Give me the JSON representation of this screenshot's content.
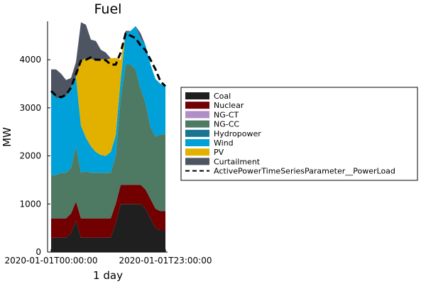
{
  "chart_data": {
    "type": "area",
    "stacked": true,
    "title": "Fuel",
    "xlabel": "1 day",
    "ylabel": "MW",
    "ylim": [
      0,
      4800
    ],
    "yticks": [
      0,
      1000,
      2000,
      3000,
      4000
    ],
    "xticks": [
      {
        "hour": 0,
        "label": "2020-01-01T00:00:00"
      },
      {
        "hour": 23,
        "label": "2020-01-01T23:00:00"
      }
    ],
    "x": [
      0,
      1,
      2,
      3,
      4,
      5,
      6,
      7,
      8,
      9,
      10,
      11,
      12,
      13,
      14,
      15,
      16,
      17,
      18,
      19,
      20,
      21,
      22,
      23
    ],
    "grid": false,
    "legend_position": "right",
    "series": [
      {
        "name": "Coal",
        "color": "#1f1f1f",
        "values": [
          300,
          300,
          300,
          300,
          400,
          650,
          300,
          300,
          300,
          300,
          300,
          300,
          300,
          600,
          1000,
          1000,
          1000,
          1000,
          1000,
          900,
          700,
          500,
          450,
          450
        ]
      },
      {
        "name": "Nuclear",
        "color": "#720000",
        "values": [
          400,
          400,
          400,
          400,
          400,
          400,
          400,
          400,
          400,
          400,
          400,
          400,
          400,
          400,
          400,
          400,
          400,
          400,
          400,
          400,
          400,
          400,
          400,
          400
        ]
      },
      {
        "name": "NG-CT",
        "color": "#b08fc7",
        "values": [
          0,
          0,
          0,
          0,
          0,
          0,
          0,
          0,
          0,
          0,
          0,
          0,
          0,
          0,
          0,
          0,
          0,
          0,
          0,
          0,
          0,
          0,
          0,
          0
        ]
      },
      {
        "name": "NG-CC",
        "color": "#4e7a63",
        "values": [
          900,
          900,
          950,
          950,
          950,
          1150,
          950,
          980,
          950,
          950,
          950,
          950,
          950,
          1000,
          1800,
          2500,
          2500,
          2400,
          2000,
          1800,
          1500,
          1500,
          1600,
          1600
        ]
      },
      {
        "name": "Hydropower",
        "color": "#1a7590",
        "values": [
          0,
          0,
          0,
          0,
          0,
          0,
          0,
          0,
          0,
          0,
          0,
          0,
          0,
          0,
          0,
          0,
          0,
          0,
          0,
          0,
          0,
          0,
          0,
          0
        ]
      },
      {
        "name": "Wind",
        "color": "#00a0d8",
        "values": [
          1750,
          1600,
          1560,
          1600,
          1670,
          1450,
          980,
          700,
          550,
          430,
          370,
          350,
          430,
          430,
          400,
          650,
          700,
          900,
          1050,
          1200,
          1300,
          1200,
          1050,
          1000
        ]
      },
      {
        "name": "PV",
        "color": "#e2b100",
        "values": [
          0,
          0,
          0,
          0,
          0,
          0,
          1350,
          1650,
          1820,
          1910,
          1990,
          2000,
          1950,
          1610,
          400,
          0,
          0,
          0,
          0,
          0,
          0,
          0,
          0,
          0
        ]
      },
      {
        "name": "Curtailment",
        "color": "#4d5563",
        "values": [
          450,
          600,
          500,
          330,
          200,
          300,
          800,
          700,
          400,
          400,
          200,
          150,
          0,
          0,
          0,
          50,
          0,
          0,
          100,
          0,
          0,
          0,
          0,
          0
        ]
      }
    ],
    "load_line": {
      "name": "ActivePowerTimeSeriesParameter__PowerLoad",
      "color": "#000000",
      "style": "dashed",
      "values": [
        3350,
        3250,
        3220,
        3270,
        3420,
        3700,
        3980,
        4000,
        4050,
        4000,
        4000,
        3990,
        3900,
        3900,
        4150,
        4550,
        4500,
        4450,
        4300,
        4200,
        4000,
        3800,
        3550,
        3450
      ]
    }
  }
}
